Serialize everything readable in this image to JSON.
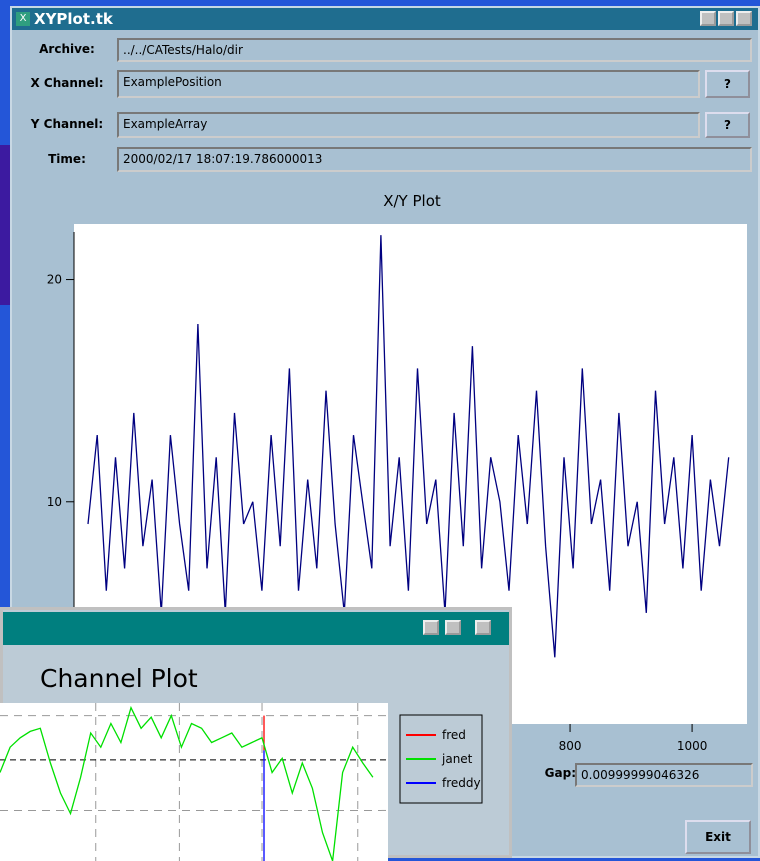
{
  "main_window": {
    "icon": "X",
    "title": "XYPlot.tk",
    "fields": [
      {
        "label": "Archive:",
        "value": "../../CATests/Halo/dir"
      },
      {
        "label": "X Channel:",
        "value": "ExamplePosition",
        "button": "?"
      },
      {
        "label": "Y Channel:",
        "value": "ExampleArray",
        "button": "?"
      },
      {
        "label": "Time:",
        "value": "2000/02/17 18:07:19.786000013"
      }
    ],
    "gap_label": "Gap:",
    "gap_value": "0.00999999046326",
    "exit_button": "Exit"
  },
  "chart_data": [
    {
      "type": "line",
      "title": "X/Y Plot",
      "x": [
        10,
        25,
        40,
        55,
        70,
        85,
        100,
        115,
        130,
        145,
        160,
        175,
        190,
        205,
        220,
        235,
        250,
        265,
        280,
        295,
        310,
        325,
        340,
        355,
        370,
        385,
        400,
        415,
        430,
        445,
        460,
        475,
        490,
        505,
        520,
        535,
        550,
        565,
        580,
        595,
        610,
        625,
        640,
        655,
        670,
        685,
        700,
        715,
        730,
        745,
        760,
        775,
        790,
        805,
        820,
        835,
        850,
        865,
        880,
        895,
        910,
        925,
        940,
        955,
        970,
        985,
        1000,
        1015,
        1030,
        1045,
        1060
      ],
      "series": [
        {
          "color": "#000080",
          "values": [
            9,
            13,
            6,
            12,
            7,
            14,
            8,
            11,
            5,
            13,
            9,
            6,
            18,
            7,
            12,
            5,
            14,
            9,
            10,
            6,
            13,
            8,
            16,
            6,
            11,
            7,
            15,
            9,
            5,
            13,
            10,
            7,
            22,
            8,
            12,
            6,
            16,
            9,
            11,
            5,
            14,
            8,
            17,
            7,
            12,
            10,
            6,
            13,
            9,
            15,
            8,
            3,
            12,
            7,
            16,
            9,
            11,
            6,
            14,
            8,
            10,
            5,
            15,
            9,
            12,
            7,
            13,
            6,
            11,
            8,
            12
          ]
        }
      ],
      "xlim": [
        -13,
        1090
      ],
      "ylim": [
        0,
        22.5
      ],
      "xticks": [
        800,
        1000
      ],
      "yticks": [
        10,
        20
      ]
    },
    {
      "type": "line",
      "title": "Channel Plot",
      "xlim": [
        0,
        38.5
      ],
      "ylim": [
        0,
        10
      ],
      "x_gridlines": [
        9.5,
        17.8,
        26,
        35.5
      ],
      "y_gridlines": [
        9.2,
        3.2
      ],
      "reference_line": 6.4,
      "series": [
        {
          "name": "fred",
          "color": "#ff0000",
          "x": [
            26.2,
            26.2
          ],
          "values": [
            9.2,
            7.0
          ]
        },
        {
          "name": "janet",
          "color": "#00e000",
          "x": [
            0,
            1,
            2,
            3,
            4,
            5,
            6,
            7,
            8,
            9,
            10,
            11,
            12,
            13,
            14,
            15,
            16,
            17,
            18,
            19,
            20,
            21,
            22,
            23,
            24,
            25,
            26,
            27,
            28,
            29,
            30,
            31,
            32,
            33,
            34,
            35,
            36,
            37
          ],
          "values": [
            5.6,
            7.2,
            7.8,
            8.2,
            8.4,
            6.2,
            4.3,
            3.0,
            5.3,
            8.1,
            7.2,
            8.7,
            7.5,
            9.7,
            8.4,
            9.1,
            7.8,
            9.2,
            7.2,
            8.7,
            8.4,
            7.5,
            7.8,
            8.1,
            7.2,
            7.5,
            7.8,
            5.6,
            6.5,
            4.3,
            6.2,
            4.6,
            1.8,
            0,
            5.6,
            7.2,
            6.2,
            5.3
          ]
        },
        {
          "name": "freddy",
          "color": "#0000ff",
          "x": [
            26.2,
            26.2
          ],
          "values": [
            7.0,
            0
          ]
        }
      ]
    }
  ]
}
